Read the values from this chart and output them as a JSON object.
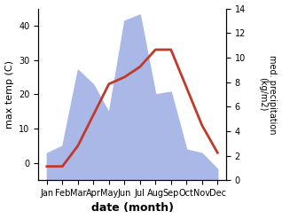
{
  "months": [
    "Jan",
    "Feb",
    "Mar",
    "Apr",
    "May",
    "Jun",
    "Jul",
    "Aug",
    "Sep",
    "Oct",
    "Nov",
    "Dec"
  ],
  "temperature": [
    -1,
    -1,
    5,
    14,
    23,
    25,
    28,
    33,
    33,
    22,
    11,
    3
  ],
  "precipitation": [
    2.2,
    2.8,
    9.0,
    7.8,
    5.5,
    13.0,
    13.5,
    7.0,
    7.2,
    2.5,
    2.2,
    0.9
  ],
  "temp_color": "#c0392b",
  "precip_fill_color": "#aab8e8",
  "left_ylabel": "max temp (C)",
  "right_ylabel": "med. precipitation\n(kg/m2)",
  "xlabel": "date (month)",
  "left_ylim": [
    -5,
    45
  ],
  "right_ylim": [
    0,
    14
  ],
  "left_yticks": [
    0,
    10,
    20,
    30,
    40
  ],
  "right_yticks": [
    0,
    2,
    4,
    6,
    8,
    10,
    12,
    14
  ]
}
